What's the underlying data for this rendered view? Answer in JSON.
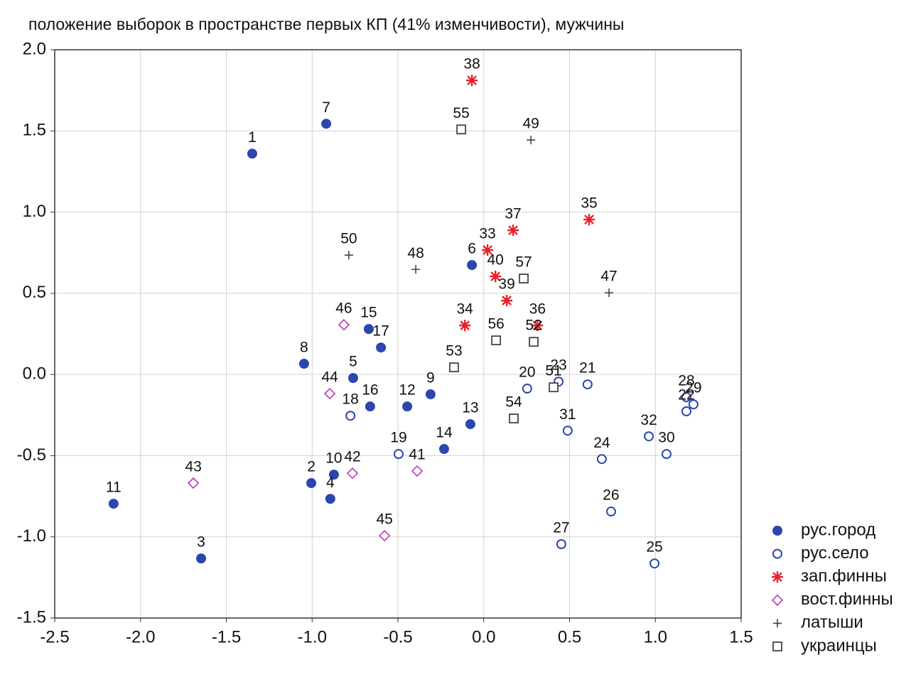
{
  "chart_data": {
    "type": "scatter",
    "title": "положение выборок в пространстве первых КП (41% изменчивости), мужчины",
    "xlim": [
      -2.5,
      1.5
    ],
    "ylim": [
      -1.5,
      2.0
    ],
    "xticks": [
      -2.5,
      {
        "value": -2,
        "label": "-2.0"
      },
      -1.5,
      {
        "value": -1,
        "label": "-1.0"
      },
      -0.5,
      {
        "value": 0,
        "label": "0.0"
      },
      0.5,
      {
        "value": 1,
        "label": "1.0"
      },
      1.5
    ],
    "yticks": [
      {
        "value": 2,
        "label": "2.0"
      },
      1.5,
      {
        "value": 1,
        "label": "1.0"
      },
      0.5,
      {
        "value": 0,
        "label": "0.0"
      },
      -0.5,
      {
        "value": -1,
        "label": "-1.0"
      },
      -1.5
    ],
    "grid": true,
    "legend": "bottom-right-outside",
    "series": [
      {
        "name": "рус.город",
        "color": "#2b46b0",
        "marker": "circle-filled",
        "point_labels": [
          1,
          7,
          6,
          8,
          15,
          17,
          5,
          16,
          12,
          9,
          13,
          14,
          2,
          10,
          4,
          11,
          3
        ],
        "x": [
          -1.349,
          -0.918,
          -0.069,
          -1.047,
          -0.67,
          -0.599,
          -0.761,
          -0.662,
          -0.446,
          -0.31,
          -0.078,
          -0.231,
          -1.005,
          -0.873,
          -0.894,
          -2.157,
          -1.647
        ],
        "values": [
          1.36,
          1.544,
          0.674,
          0.066,
          0.28,
          0.166,
          -0.022,
          -0.197,
          -0.197,
          -0.122,
          -0.306,
          -0.459,
          -0.669,
          -0.617,
          -0.766,
          -0.796,
          -1.133
        ]
      },
      {
        "name": "рус.село",
        "color": "#2b46b0",
        "marker": "circle-open",
        "point_labels": [
          18,
          19,
          20,
          23,
          21,
          31,
          24,
          26,
          27,
          28,
          29,
          22,
          32,
          30,
          25
        ],
        "x": [
          -0.777,
          -0.496,
          0.253,
          0.436,
          0.605,
          0.489,
          0.688,
          0.742,
          0.452,
          1.181,
          1.222,
          1.181,
          0.962,
          1.065,
          0.995
        ],
        "values": [
          -0.254,
          -0.49,
          -0.087,
          -0.044,
          -0.061,
          -0.346,
          -0.521,
          -0.844,
          -1.045,
          -0.14,
          -0.184,
          -0.227,
          -0.381,
          -0.49,
          -1.164
        ]
      },
      {
        "name": "зап.финны",
        "color": "#e8202a",
        "marker": "asterisk",
        "point_labels": [
          38,
          37,
          35,
          33,
          40,
          39,
          34,
          36
        ],
        "x": [
          -0.069,
          0.171,
          0.614,
          0.022,
          0.068,
          0.134,
          -0.11,
          0.313
        ],
        "values": [
          1.811,
          0.888,
          0.954,
          0.766,
          0.604,
          0.455,
          0.302,
          0.302
        ]
      },
      {
        "name": "вост.финны",
        "color": "#c04cc0",
        "marker": "diamond-open",
        "point_labels": [
          46,
          44,
          42,
          41,
          45,
          43
        ],
        "x": [
          -0.815,
          -0.897,
          -0.765,
          -0.388,
          -0.578,
          -1.692
        ],
        "values": [
          0.306,
          -0.118,
          -0.608,
          -0.595,
          -0.993,
          -0.669
        ]
      },
      {
        "name": "латыши",
        "color": "#444444",
        "marker": "plus",
        "point_labels": [
          50,
          48,
          49,
          47
        ],
        "x": [
          -0.786,
          -0.396,
          0.275,
          0.73
        ],
        "values": [
          0.735,
          0.647,
          1.444,
          0.503
        ]
      },
      {
        "name": "украинцы",
        "color": "#444444",
        "marker": "square-open",
        "point_labels": [
          55,
          57,
          56,
          52,
          53,
          51,
          54
        ],
        "x": [
          -0.131,
          0.233,
          0.072,
          0.291,
          -0.173,
          0.407,
          0.175
        ],
        "values": [
          1.509,
          0.591,
          0.21,
          0.201,
          0.044,
          -0.079,
          -0.271
        ]
      }
    ]
  }
}
